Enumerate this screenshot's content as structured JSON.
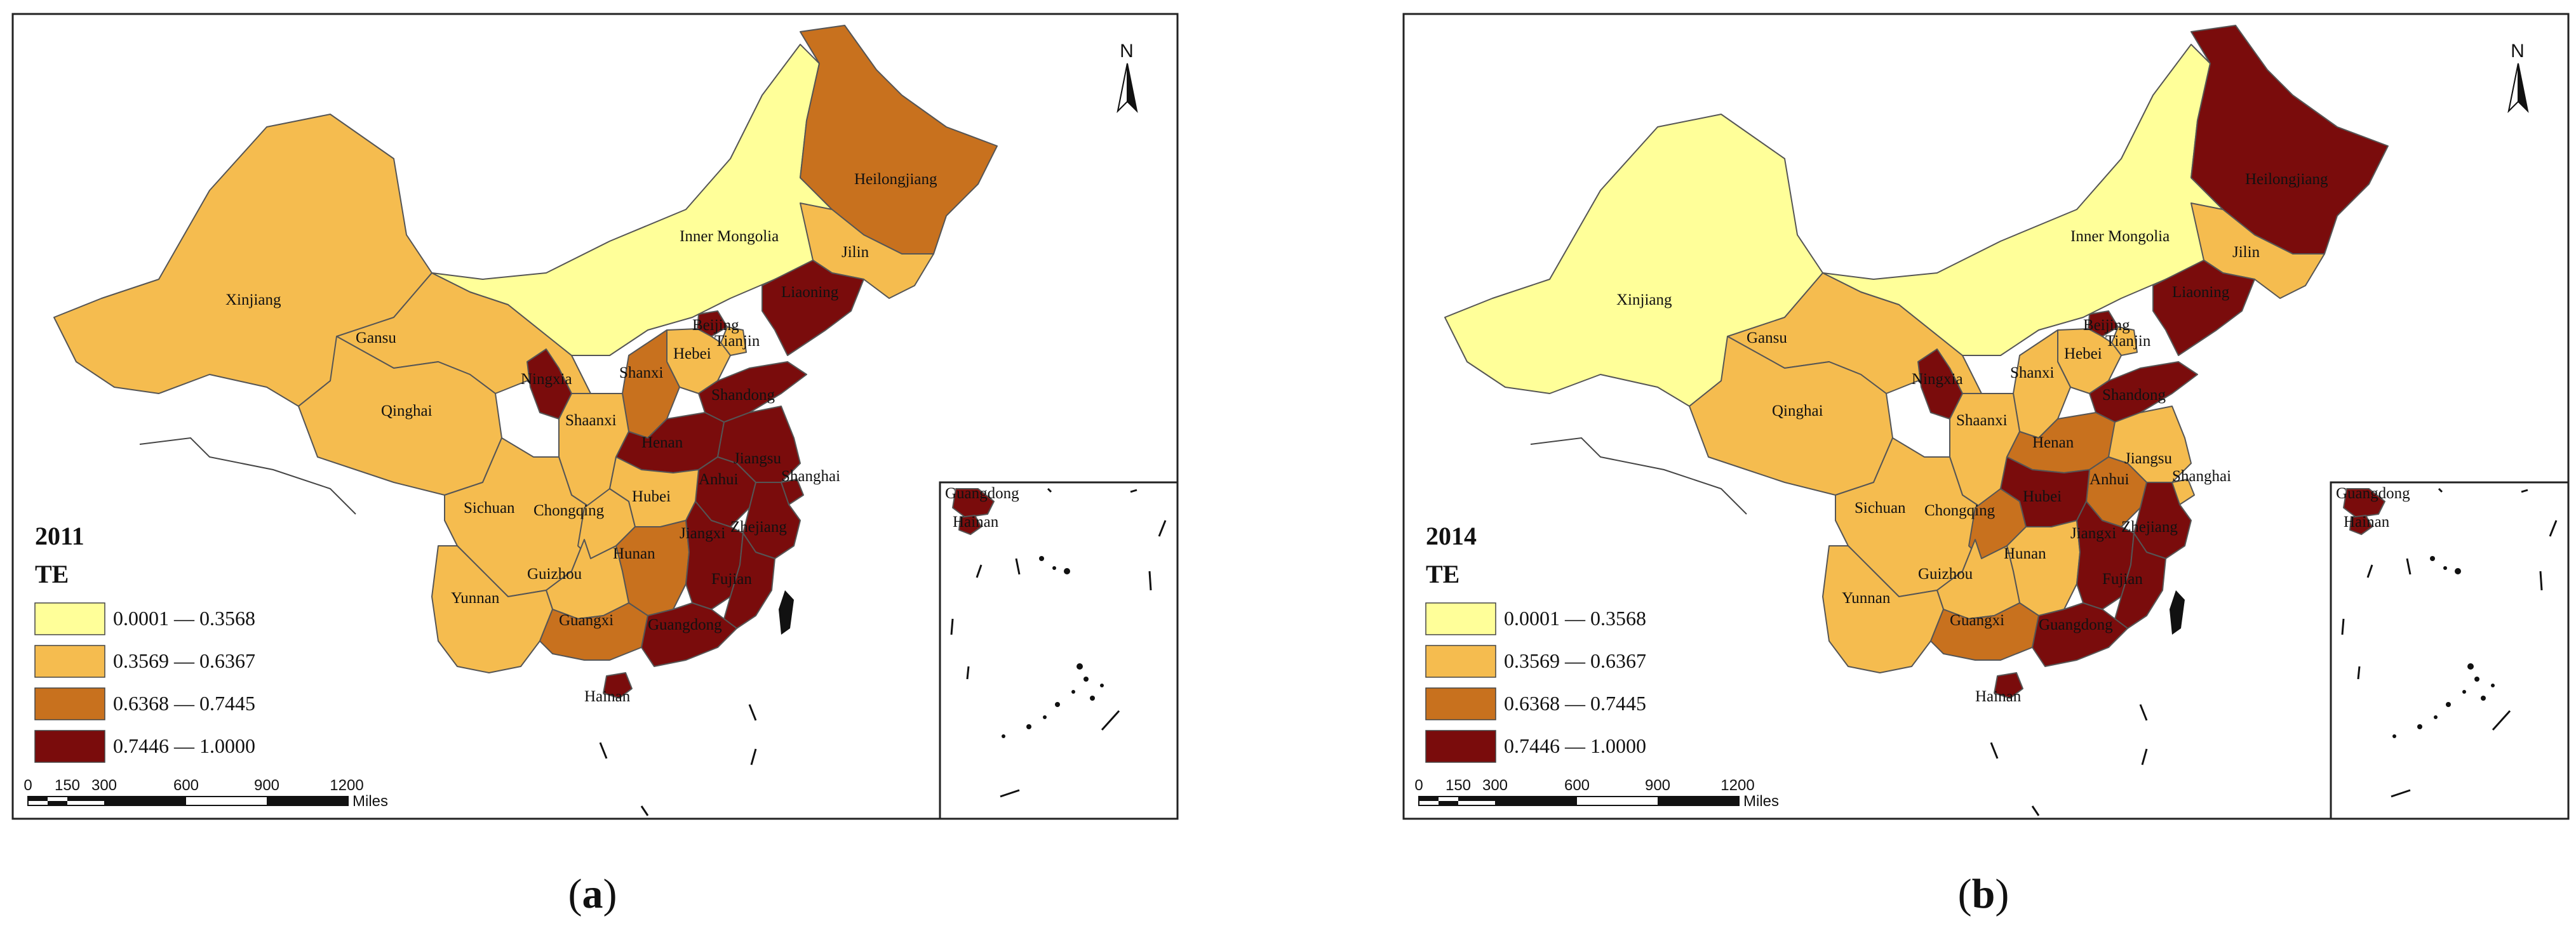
{
  "colors": {
    "c1": "#ffff99",
    "c2": "#f5bc4f",
    "c3": "#c8711e",
    "c4": "#7a0c0c"
  },
  "legend": {
    "title": "TE",
    "classes": [
      {
        "range": "0.0001 — 0.3568",
        "color_key": "c1"
      },
      {
        "range": "0.3569 — 0.6367",
        "color_key": "c2"
      },
      {
        "range": "0.6368 — 0.7445",
        "color_key": "c3"
      },
      {
        "range": "0.7446 — 1.0000",
        "color_key": "c4"
      }
    ]
  },
  "scale_bar": {
    "ticks": [
      "0",
      "150",
      "300",
      "600",
      "900",
      "1200"
    ],
    "unit": "Miles"
  },
  "north_label": "N",
  "inset_labels": [
    "Guangdong",
    "Hainan"
  ],
  "province_names": {
    "xinjiang": "Xinjiang",
    "gansu": "Gansu",
    "qinghai": "Qinghai",
    "inner_mongolia": "Inner Mongolia",
    "heilongjiang": "Heilongjiang",
    "jilin": "Jilin",
    "liaoning": "Liaoning",
    "beijing": "Beijing",
    "tianjin": "Tianjin",
    "hebei": "Hebei",
    "shanxi": "Shanxi",
    "ningxia": "Ningxia",
    "shandong": "Shandong",
    "shaanxi": "Shaanxi",
    "henan": "Henan",
    "jiangsu": "Jiangsu",
    "anhui": "Anhui",
    "shanghai": "Shanghai",
    "sichuan": "Sichuan",
    "chongqing": "Chongqing",
    "hubei": "Hubei",
    "zhejiang": "Zhejiang",
    "hunan": "Hunan",
    "jiangxi": "Jiangxi",
    "guizhou": "Guizhou",
    "fujian": "Fujian",
    "yunnan": "Yunnan",
    "guangxi": "Guangxi",
    "guangdong": "Guangdong",
    "hainan": "Hainan"
  },
  "panels": [
    {
      "year": "2011",
      "caption_letter": "a",
      "classes": {
        "xinjiang": "c2",
        "gansu": "c2",
        "qinghai": "c2",
        "inner_mongolia": "c1",
        "heilongjiang": "c3",
        "jilin": "c2",
        "liaoning": "c4",
        "beijing": "c4",
        "tianjin": "c2",
        "hebei": "c2",
        "shanxi": "c3",
        "ningxia": "c4",
        "shandong": "c4",
        "shaanxi": "c2",
        "henan": "c4",
        "jiangsu": "c4",
        "anhui": "c4",
        "shanghai": "c4",
        "sichuan": "c2",
        "chongqing": "c2",
        "hubei": "c2",
        "zhejiang": "c4",
        "hunan": "c3",
        "jiangxi": "c4",
        "guizhou": "c2",
        "fujian": "c4",
        "yunnan": "c2",
        "guangxi": "c3",
        "guangdong": "c4",
        "hainan": "c4"
      }
    },
    {
      "year": "2014",
      "caption_letter": "b",
      "classes": {
        "xinjiang": "c1",
        "gansu": "c2",
        "qinghai": "c2",
        "inner_mongolia": "c1",
        "heilongjiang": "c4",
        "jilin": "c2",
        "liaoning": "c4",
        "beijing": "c4",
        "tianjin": "c2",
        "hebei": "c2",
        "shanxi": "c2",
        "ningxia": "c4",
        "shandong": "c4",
        "shaanxi": "c2",
        "henan": "c3",
        "jiangsu": "c2",
        "anhui": "c3",
        "shanghai": "c2",
        "sichuan": "c2",
        "chongqing": "c3",
        "hubei": "c4",
        "zhejiang": "c4",
        "hunan": "c2",
        "jiangxi": "c4",
        "guizhou": "c2",
        "fujian": "c4",
        "yunnan": "c2",
        "guangxi": "c3",
        "guangdong": "c4",
        "hainan": "c4"
      }
    }
  ]
}
